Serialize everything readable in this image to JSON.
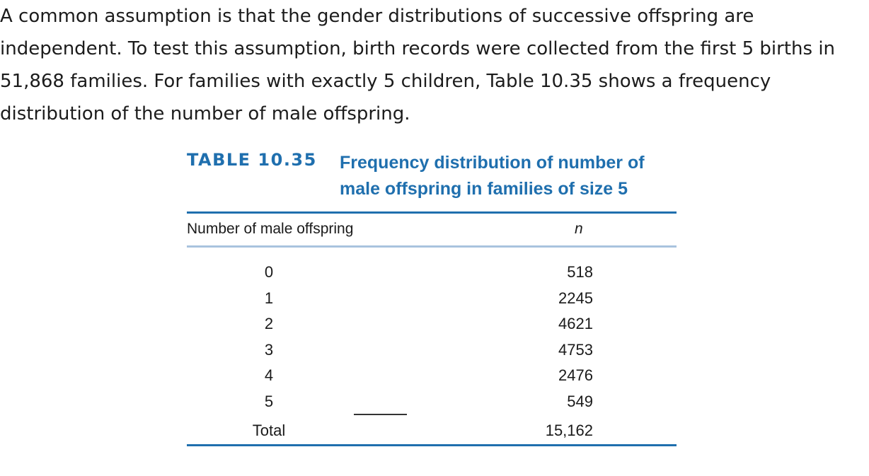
{
  "intro_lines": [
    "A common assumption is that the gender distributions of successive offspring are",
    "independent. To test this assumption, birth records were collected from the first 5 births in",
    "51,868 families. For families with exactly 5 children, Table 10.35 shows a frequency",
    "distribution of the number of male offspring."
  ],
  "table": {
    "number": "TABLE 10.35",
    "title_lines": [
      "Frequency distribution of number of",
      "male offspring in families of size 5"
    ],
    "headers": {
      "left": "Number of male offspring",
      "right": "n"
    },
    "rows": [
      {
        "label": "0",
        "value": "518"
      },
      {
        "label": "1",
        "value": "2245"
      },
      {
        "label": "2",
        "value": "4621"
      },
      {
        "label": "3",
        "value": "4753"
      },
      {
        "label": "4",
        "value": "2476"
      },
      {
        "label": "5",
        "value": "549"
      }
    ],
    "total": {
      "label": "Total",
      "value": "15,162"
    }
  },
  "colors": {
    "accent": "#1f6fae",
    "header_rule": "#a9c3de",
    "text": "#1a1a1a"
  }
}
